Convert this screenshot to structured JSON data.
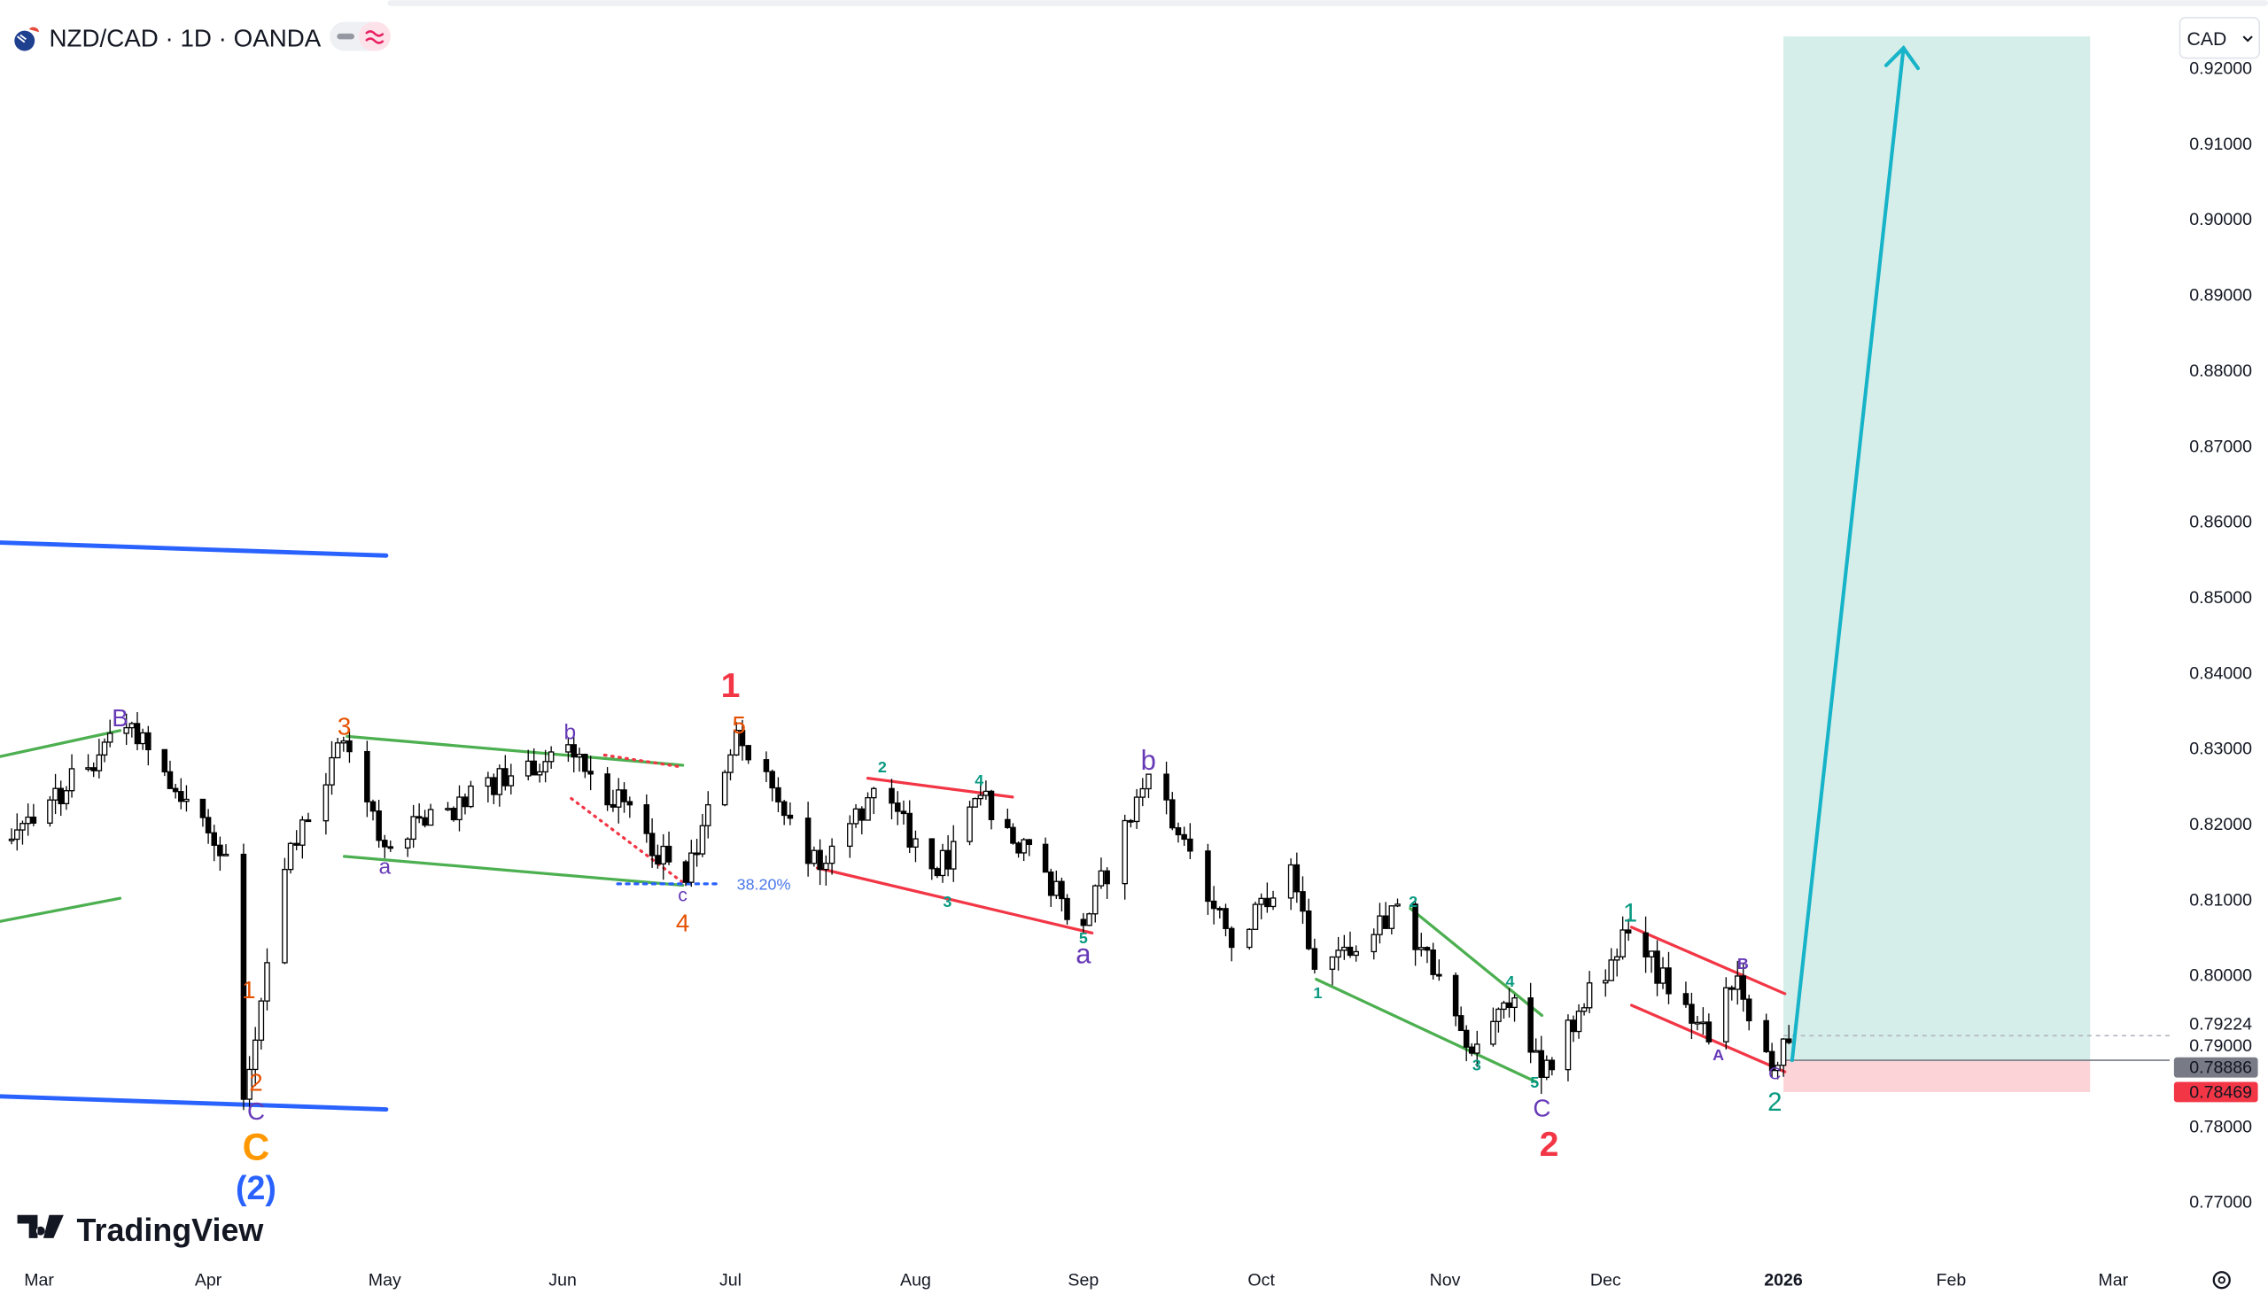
{
  "header": {
    "symbol_title": "NZD/CAD · 1D · OANDA",
    "flag_icon": "nz-ca-flag-icon",
    "currency_button": "CAD"
  },
  "branding": {
    "logo_text": "TradingView"
  },
  "colors": {
    "up_candle": "#ffffff",
    "down_candle": "#000000",
    "blue_line": "#2962ff",
    "green_channel": "#4caf50",
    "red_channel": "#f23645",
    "purple_label": "#673ab7",
    "orange_label": "#e65100",
    "teal_label": "#089981",
    "target_zone": "#d5eee9",
    "stop_zone": "#fcd3d7",
    "arrow": "#17b3c8"
  },
  "price_axis": {
    "ticks": [
      "0.92000",
      "0.91000",
      "0.90000",
      "0.89000",
      "0.88000",
      "0.87000",
      "0.86000",
      "0.85000",
      "0.84000",
      "0.83000",
      "0.82000",
      "0.81000",
      "0.80000",
      "0.79000",
      "0.78000",
      "0.77000"
    ],
    "marker_line_price": "0.79224",
    "current_price": "0.78886",
    "stop_price": "0.78469"
  },
  "time_axis": {
    "ticks": [
      "Mar",
      "Apr",
      "May",
      "Jun",
      "Jul",
      "Aug",
      "Sep",
      "Oct",
      "Nov",
      "Dec",
      "2026",
      "Feb",
      "Mar"
    ]
  },
  "fib_label": "38.20%",
  "wave_labels": [
    "B",
    "b",
    "a",
    "c",
    "a",
    "b",
    "C",
    "A",
    "B",
    "C",
    "C",
    "3",
    "5",
    "4",
    "1",
    "2",
    "C",
    "(2)",
    "1",
    "2",
    "2",
    "4",
    "3",
    "5",
    "1",
    "2",
    "3",
    "4",
    "5",
    "1",
    "2"
  ],
  "chart_data": {
    "type": "candlestick",
    "title": "NZD/CAD · 1D · OANDA",
    "ylim": [
      0.765,
      0.925
    ],
    "x_range": [
      "2025-02-22",
      "2026-03-10"
    ],
    "grid": false,
    "approx_price_path": [
      [
        "2025-02-24",
        0.818
      ],
      [
        "2025-03-18",
        0.8333
      ],
      [
        "2025-04-04",
        0.816
      ],
      [
        "2025-04-07",
        0.7836
      ],
      [
        "2025-04-14",
        0.814
      ],
      [
        "2025-04-24",
        0.831
      ],
      [
        "2025-05-01",
        0.817
      ],
      [
        "2025-06-02",
        0.8305
      ],
      [
        "2025-06-23",
        0.8123
      ],
      [
        "2025-07-02",
        0.8324
      ],
      [
        "2025-07-16",
        0.814
      ],
      [
        "2025-07-25",
        0.8247
      ],
      [
        "2025-08-05",
        0.8132
      ],
      [
        "2025-08-13",
        0.8238
      ],
      [
        "2025-09-01",
        0.8066
      ],
      [
        "2025-09-12",
        0.8266
      ],
      [
        "2025-09-26",
        0.8037
      ],
      [
        "2025-10-06",
        0.8146
      ],
      [
        "2025-10-10",
        0.8008
      ],
      [
        "2025-10-24",
        0.8094
      ],
      [
        "2025-11-06",
        0.7897
      ],
      [
        "2025-11-14",
        0.797
      ],
      [
        "2025-11-19",
        0.7865
      ],
      [
        "2025-12-05",
        0.8056
      ],
      [
        "2025-12-19",
        0.7912
      ],
      [
        "2025-12-24",
        0.7999
      ],
      [
        "2025-12-30",
        0.7874
      ],
      [
        "2026-01-02",
        0.7911
      ]
    ],
    "position": {
      "entry": 0.78886,
      "stop": 0.78469,
      "target": 0.925
    }
  }
}
